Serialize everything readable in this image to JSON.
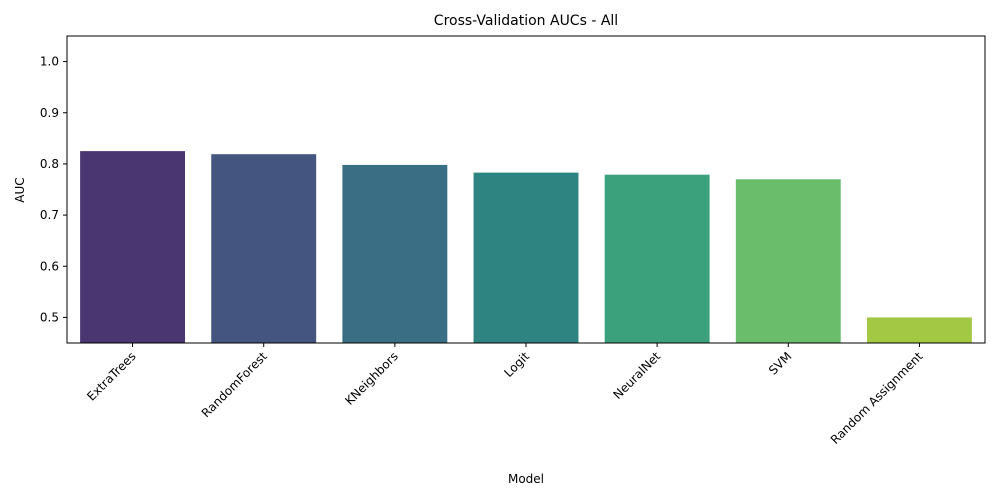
{
  "chart_data": {
    "type": "bar",
    "title": "Cross-Validation AUCs - All",
    "xlabel": "Model",
    "ylabel": "AUC",
    "categories": [
      "ExtraTrees",
      "RandomForest",
      "KNeighbors",
      "Logit",
      "NeuralNet",
      "SVM",
      "Random Assignment"
    ],
    "values": [
      0.825,
      0.819,
      0.798,
      0.783,
      0.779,
      0.77,
      0.5
    ],
    "colors": [
      "#4a3671",
      "#44557f",
      "#3a6e84",
      "#2d8480",
      "#3aa17c",
      "#6abd6b",
      "#a3c843"
    ],
    "ylim": [
      0.45,
      1.05
    ],
    "yticks": [
      0.5,
      0.6,
      0.7,
      0.8,
      0.9,
      1.0
    ],
    "ytick_labels": [
      "0.5",
      "0.6",
      "0.7",
      "0.8",
      "0.9",
      "1.0"
    ],
    "grid": false,
    "legend": "none"
  }
}
